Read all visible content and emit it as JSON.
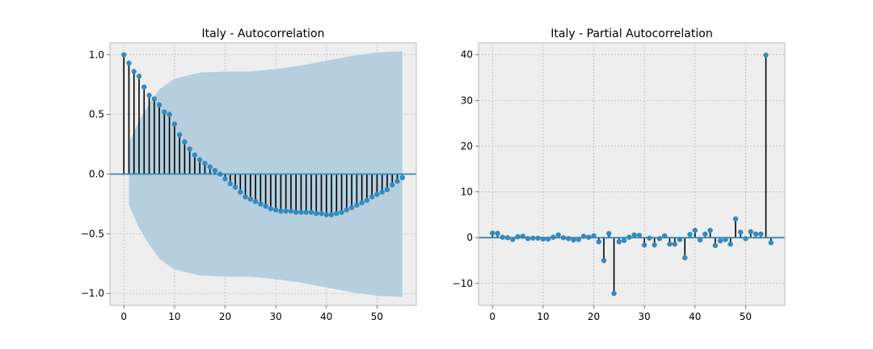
{
  "chart_data": [
    {
      "type": "stem",
      "title": "Italy - Autocorrelation",
      "xlabel": "",
      "ylabel": "",
      "xlim": [
        -2.75,
        57.75
      ],
      "ylim": [
        -1.1,
        1.1
      ],
      "xticks": [
        0,
        10,
        20,
        30,
        40,
        50
      ],
      "yticks": [
        -1.0,
        -0.5,
        0.0,
        0.5,
        1.0
      ],
      "xtick_labels": [
        "0",
        "10",
        "20",
        "30",
        "40",
        "50"
      ],
      "ytick_labels": [
        "−1.0",
        "−0.5",
        "0.0",
        "0.5",
        "1.0"
      ],
      "grid": true,
      "x": [
        0,
        1,
        2,
        3,
        4,
        5,
        6,
        7,
        8,
        9,
        10,
        11,
        12,
        13,
        14,
        15,
        16,
        17,
        18,
        19,
        20,
        21,
        22,
        23,
        24,
        25,
        26,
        27,
        28,
        29,
        30,
        31,
        32,
        33,
        34,
        35,
        36,
        37,
        38,
        39,
        40,
        41,
        42,
        43,
        44,
        45,
        46,
        47,
        48,
        49,
        50,
        51,
        52,
        53,
        54,
        55
      ],
      "values": [
        1.0,
        0.93,
        0.86,
        0.82,
        0.73,
        0.66,
        0.63,
        0.58,
        0.52,
        0.5,
        0.42,
        0.33,
        0.27,
        0.21,
        0.16,
        0.12,
        0.09,
        0.06,
        0.03,
        0.0,
        -0.04,
        -0.08,
        -0.11,
        -0.15,
        -0.19,
        -0.21,
        -0.23,
        -0.25,
        -0.27,
        -0.29,
        -0.3,
        -0.31,
        -0.31,
        -0.31,
        -0.32,
        -0.32,
        -0.32,
        -0.32,
        -0.33,
        -0.33,
        -0.34,
        -0.34,
        -0.33,
        -0.32,
        -0.3,
        -0.28,
        -0.26,
        -0.24,
        -0.22,
        -0.19,
        -0.17,
        -0.15,
        -0.13,
        -0.09,
        -0.06,
        -0.03
      ],
      "confidence_band": {
        "x": [
          1,
          3,
          5,
          7,
          10,
          15,
          20,
          25,
          30,
          35,
          40,
          45,
          50,
          55
        ],
        "upper": [
          0.26,
          0.45,
          0.59,
          0.71,
          0.8,
          0.85,
          0.86,
          0.86,
          0.88,
          0.91,
          0.95,
          0.99,
          1.02,
          1.03
        ],
        "lower": [
          -0.26,
          -0.45,
          -0.59,
          -0.71,
          -0.8,
          -0.85,
          -0.86,
          -0.86,
          -0.88,
          -0.91,
          -0.95,
          -0.99,
          -1.02,
          -1.03
        ]
      },
      "colors": {
        "marker": "#348abd",
        "stem": "#000000",
        "baseline": "#348abd",
        "band": "#b5cfdf",
        "background": "#eeeeee",
        "grid": "#bbbbbb"
      }
    },
    {
      "type": "stem",
      "title": "Italy - Partial Autocorrelation",
      "xlabel": "",
      "ylabel": "",
      "xlim": [
        -2.75,
        57.75
      ],
      "ylim": [
        -14.8,
        42.6
      ],
      "xticks": [
        0,
        10,
        20,
        30,
        40,
        50
      ],
      "yticks": [
        -10,
        0,
        10,
        20,
        30,
        40
      ],
      "xtick_labels": [
        "0",
        "10",
        "20",
        "30",
        "40",
        "50"
      ],
      "ytick_labels": [
        "−10",
        "0",
        "10",
        "20",
        "30",
        "40"
      ],
      "grid": true,
      "x": [
        0,
        1,
        2,
        3,
        4,
        5,
        6,
        7,
        8,
        9,
        10,
        11,
        12,
        13,
        14,
        15,
        16,
        17,
        18,
        19,
        20,
        21,
        22,
        23,
        24,
        25,
        26,
        27,
        28,
        29,
        30,
        31,
        32,
        33,
        34,
        35,
        36,
        37,
        38,
        39,
        40,
        41,
        42,
        43,
        44,
        45,
        46,
        47,
        48,
        49,
        50,
        51,
        52,
        53,
        54,
        55
      ],
      "values": [
        1.0,
        0.93,
        0.1,
        0.0,
        -0.4,
        0.2,
        0.3,
        -0.2,
        -0.1,
        -0.1,
        -0.3,
        -0.3,
        0.1,
        0.6,
        0.0,
        -0.2,
        -0.5,
        -0.4,
        0.3,
        0.1,
        0.4,
        -0.9,
        -5.0,
        0.9,
        -12.2,
        -0.9,
        -0.6,
        0.1,
        0.6,
        0.5,
        -1.6,
        -0.1,
        -1.6,
        -0.2,
        0.4,
        -1.4,
        -1.4,
        -0.4,
        -4.4,
        0.7,
        1.6,
        -0.5,
        0.8,
        1.6,
        -1.7,
        -0.7,
        -0.4,
        -1.4,
        4.1,
        1.2,
        -0.2,
        1.3,
        0.8,
        0.8,
        39.9,
        -1.1
      ],
      "colors": {
        "marker": "#348abd",
        "stem": "#000000",
        "baseline": "#348abd",
        "background": "#eeeeee",
        "grid": "#bbbbbb"
      }
    }
  ]
}
